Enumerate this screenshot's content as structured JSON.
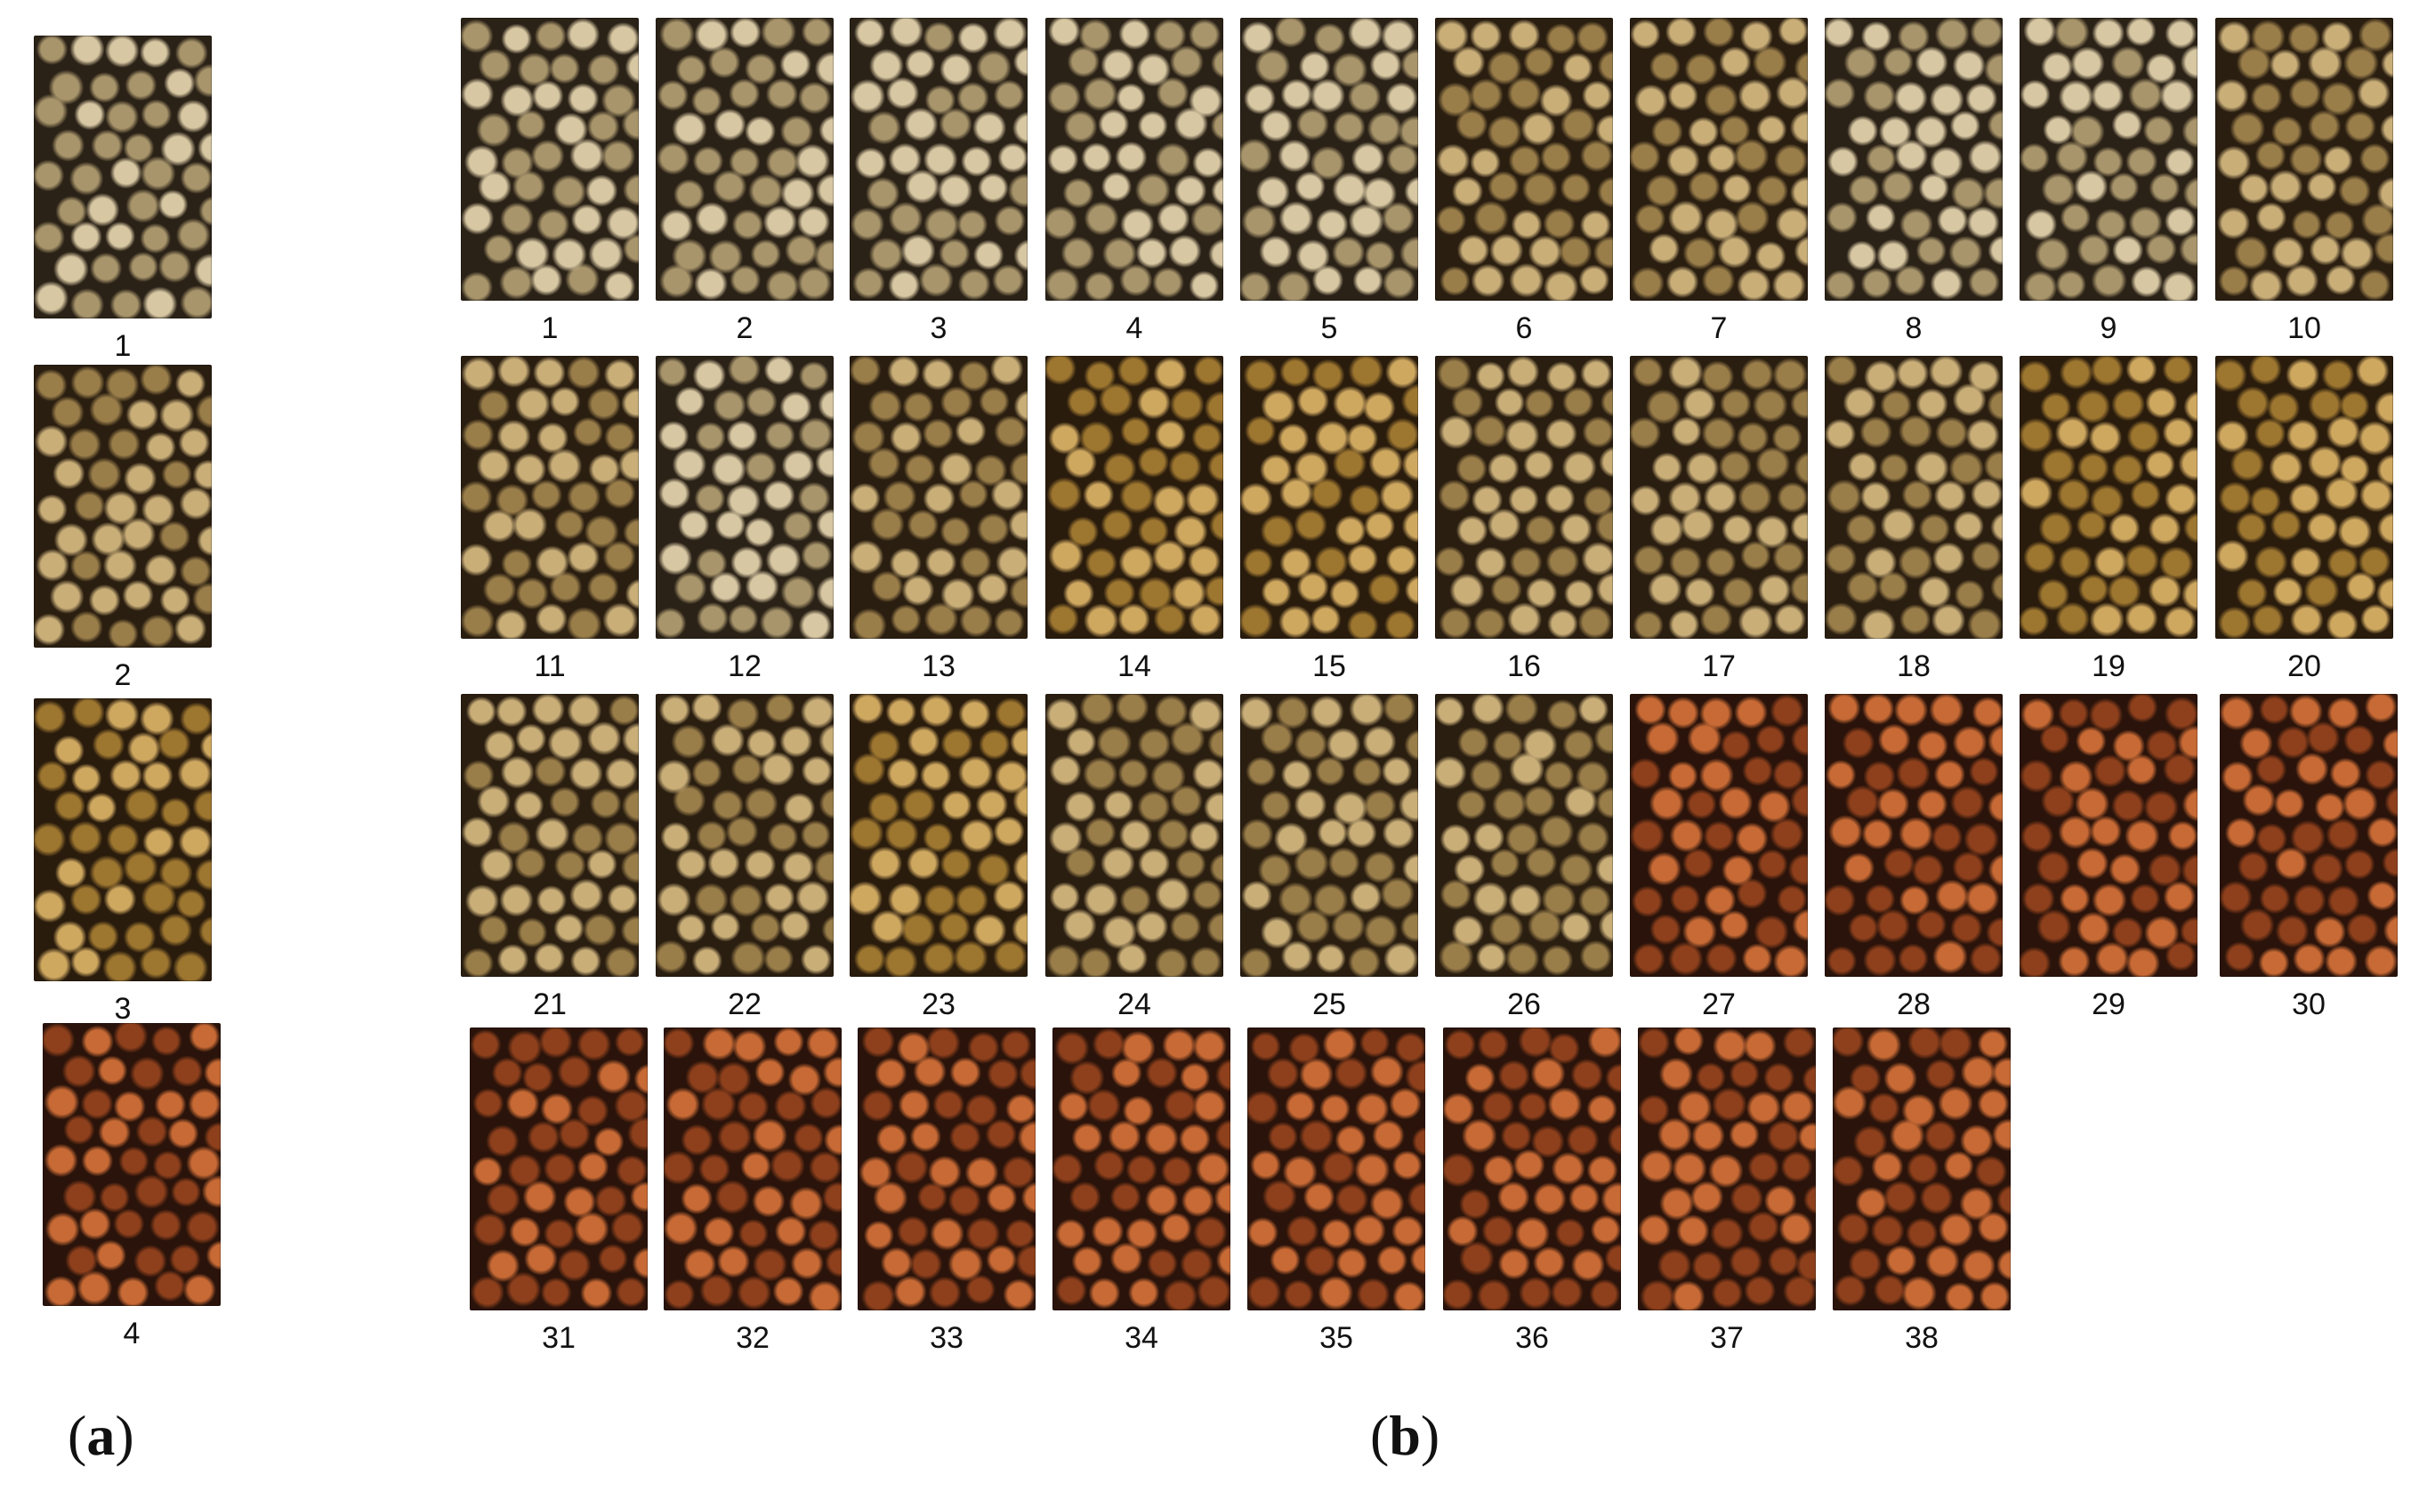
{
  "panels": {
    "a": {
      "label_open": "(",
      "letter": "a",
      "label_close": ")"
    },
    "b": {
      "label_open": "(",
      "letter": "b",
      "label_close": ")"
    }
  },
  "panel_a": {
    "samples": [
      {
        "label": "1",
        "color": "light-beige"
      },
      {
        "label": "2",
        "color": "tan"
      },
      {
        "label": "3",
        "color": "golden-tan"
      },
      {
        "label": "4",
        "color": "reddish-brown"
      }
    ]
  },
  "panel_b": {
    "samples": [
      {
        "label": "1",
        "color": "light-beige"
      },
      {
        "label": "2",
        "color": "light-beige"
      },
      {
        "label": "3",
        "color": "light-beige"
      },
      {
        "label": "4",
        "color": "light-beige"
      },
      {
        "label": "5",
        "color": "light-beige"
      },
      {
        "label": "6",
        "color": "tan"
      },
      {
        "label": "7",
        "color": "tan"
      },
      {
        "label": "8",
        "color": "light-beige"
      },
      {
        "label": "9",
        "color": "light-beige"
      },
      {
        "label": "10",
        "color": "tan"
      },
      {
        "label": "11",
        "color": "tan"
      },
      {
        "label": "12",
        "color": "light-beige"
      },
      {
        "label": "13",
        "color": "tan"
      },
      {
        "label": "14",
        "color": "golden-tan"
      },
      {
        "label": "15",
        "color": "golden-tan"
      },
      {
        "label": "16",
        "color": "tan"
      },
      {
        "label": "17",
        "color": "tan"
      },
      {
        "label": "18",
        "color": "tan"
      },
      {
        "label": "19",
        "color": "golden-tan"
      },
      {
        "label": "20",
        "color": "golden-tan"
      },
      {
        "label": "21",
        "color": "tan"
      },
      {
        "label": "22",
        "color": "tan"
      },
      {
        "label": "23",
        "color": "golden-tan"
      },
      {
        "label": "24",
        "color": "tan"
      },
      {
        "label": "25",
        "color": "tan"
      },
      {
        "label": "26",
        "color": "tan"
      },
      {
        "label": "27",
        "color": "reddish-brown"
      },
      {
        "label": "28",
        "color": "reddish-brown"
      },
      {
        "label": "29",
        "color": "reddish-brown"
      },
      {
        "label": "30",
        "color": "reddish-brown"
      },
      {
        "label": "31",
        "color": "reddish-brown"
      },
      {
        "label": "32",
        "color": "reddish-brown"
      },
      {
        "label": "33",
        "color": "reddish-brown"
      },
      {
        "label": "34",
        "color": "reddish-brown"
      },
      {
        "label": "35",
        "color": "reddish-brown"
      },
      {
        "label": "36",
        "color": "reddish-brown"
      },
      {
        "label": "37",
        "color": "reddish-brown"
      },
      {
        "label": "38",
        "color": "reddish-brown"
      }
    ]
  },
  "palette": {
    "light-beige": {
      "base": "#2b2217",
      "grain": "#d7c7a2",
      "shade": "#a8956b"
    },
    "tan": {
      "base": "#2a1e10",
      "grain": "#c9ae78",
      "shade": "#9a7e4a"
    },
    "golden-tan": {
      "base": "#2a1c0c",
      "grain": "#cfa860",
      "shade": "#9d7630"
    },
    "reddish-brown": {
      "base": "#2a130a",
      "grain": "#c86a35",
      "shade": "#8e401c"
    }
  }
}
